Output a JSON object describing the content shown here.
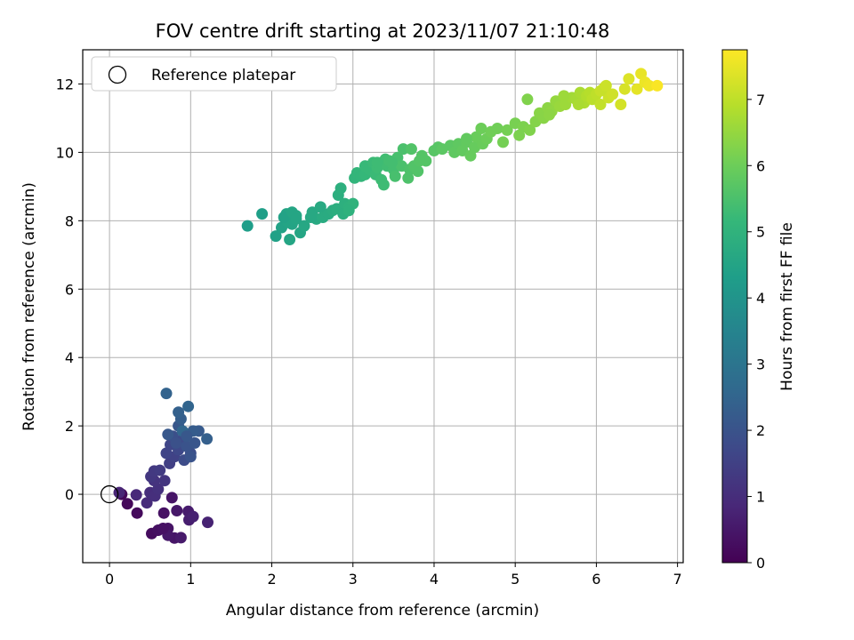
{
  "chart_data": {
    "type": "scatter",
    "title": "FOV centre drift starting at 2023/11/07 21:10:48",
    "xlabel": "Angular distance from reference (arcmin)",
    "ylabel": "Rotation from reference (arcmin)",
    "xlim": [
      -0.33,
      7.07
    ],
    "ylim": [
      -2.0,
      13.0
    ],
    "xticks": [
      0,
      1,
      2,
      3,
      4,
      5,
      6,
      7
    ],
    "yticks": [
      0,
      2,
      4,
      6,
      8,
      10,
      12
    ],
    "grid": true,
    "legend": {
      "position": "top-left",
      "entries": [
        "Reference platepar"
      ]
    },
    "reference_point": {
      "x": 0,
      "y": 0,
      "label": "Reference platepar"
    },
    "colorbar": {
      "label": "Hours from first FF file",
      "min": 0,
      "max": 7.75,
      "ticks": [
        0,
        1,
        2,
        3,
        4,
        5,
        6,
        7
      ],
      "colormap": "viridis"
    },
    "colormap_stops": [
      "#440154",
      "#482878",
      "#3e4989",
      "#31688e",
      "#26828e",
      "#1f9e89",
      "#35b779",
      "#6ece58",
      "#b5de2b",
      "#fde725"
    ],
    "series": [
      {
        "points": [
          [
            0.15,
            0.0,
            0.1
          ],
          [
            0.22,
            -0.28,
            0.15
          ],
          [
            0.34,
            -0.55,
            0.2
          ],
          [
            0.52,
            -1.15,
            0.25
          ],
          [
            0.6,
            -1.05,
            0.3
          ],
          [
            0.67,
            -0.55,
            0.35
          ],
          [
            0.72,
            -1.0,
            0.4
          ],
          [
            0.77,
            -0.1,
            0.42
          ],
          [
            0.8,
            -1.28,
            0.45
          ],
          [
            0.83,
            -0.48,
            0.5
          ],
          [
            0.88,
            -1.27,
            0.55
          ],
          [
            0.97,
            -0.5,
            0.6
          ],
          [
            0.98,
            -0.75,
            0.65
          ],
          [
            1.03,
            -0.65,
            0.7
          ],
          [
            1.21,
            -0.82,
            0.75
          ],
          [
            0.72,
            -1.2,
            0.5
          ],
          [
            0.66,
            -1.0,
            0.35
          ],
          [
            0.12,
            0.05,
            0.8
          ],
          [
            0.33,
            -0.02,
            0.9
          ],
          [
            0.46,
            -0.25,
            0.95
          ],
          [
            0.5,
            0.05,
            1.0
          ],
          [
            0.56,
            -0.05,
            1.05
          ],
          [
            0.6,
            0.15,
            1.1
          ],
          [
            0.55,
            0.4,
            1.15
          ],
          [
            0.68,
            0.4,
            1.2
          ],
          [
            0.51,
            0.52,
            1.25
          ],
          [
            0.55,
            0.68,
            1.3
          ],
          [
            0.62,
            0.7,
            1.35
          ],
          [
            0.74,
            0.9,
            1.45
          ],
          [
            0.8,
            1.1,
            1.55
          ],
          [
            0.7,
            1.2,
            1.6
          ],
          [
            0.75,
            1.45,
            1.65
          ],
          [
            0.85,
            1.3,
            1.7
          ],
          [
            0.9,
            1.6,
            1.75
          ],
          [
            0.92,
            1.0,
            1.8
          ],
          [
            1.0,
            1.2,
            1.85
          ],
          [
            0.78,
            1.7,
            1.9
          ],
          [
            0.82,
            1.5,
            1.95
          ],
          [
            0.95,
            1.4,
            2.0
          ],
          [
            1.05,
            1.5,
            2.05
          ],
          [
            0.85,
            2.0,
            2.1
          ],
          [
            0.72,
            1.75,
            2.15
          ],
          [
            1.1,
            1.85,
            2.2
          ],
          [
            1.03,
            1.85,
            2.25
          ],
          [
            0.88,
            2.2,
            2.3
          ],
          [
            1.2,
            1.62,
            2.35
          ],
          [
            0.85,
            2.4,
            2.4
          ],
          [
            0.7,
            2.95,
            2.45
          ],
          [
            0.97,
            2.57,
            2.5
          ],
          [
            0.9,
            1.85,
            2.55
          ],
          [
            1.0,
            1.1,
            2.0
          ],
          [
            0.95,
            1.7,
            2.1
          ]
        ]
      },
      {
        "points": [
          [
            1.7,
            7.85,
            4.3
          ],
          [
            1.88,
            8.2,
            4.35
          ],
          [
            2.05,
            7.55,
            4.4
          ],
          [
            2.12,
            7.8,
            4.45
          ],
          [
            2.18,
            8.2,
            4.5
          ],
          [
            2.22,
            7.45,
            4.55
          ],
          [
            2.25,
            7.9,
            4.5
          ],
          [
            2.3,
            8.15,
            4.6
          ],
          [
            2.35,
            7.65,
            4.55
          ],
          [
            2.4,
            7.85,
            4.6
          ],
          [
            2.2,
            7.95,
            4.5
          ],
          [
            2.15,
            8.1,
            4.45
          ],
          [
            2.25,
            8.25,
            4.55
          ],
          [
            2.5,
            8.25,
            4.65
          ],
          [
            2.55,
            8.05,
            4.7
          ],
          [
            2.6,
            8.4,
            4.7
          ],
          [
            2.63,
            8.1,
            4.75
          ],
          [
            2.7,
            8.2,
            4.75
          ],
          [
            2.75,
            8.3,
            4.8
          ],
          [
            2.8,
            8.35,
            4.85
          ],
          [
            2.82,
            8.75,
            4.85
          ],
          [
            2.85,
            8.95,
            4.9
          ],
          [
            2.88,
            8.2,
            4.85
          ],
          [
            2.9,
            8.5,
            4.9
          ],
          [
            2.95,
            8.4,
            4.95
          ],
          [
            3.0,
            8.5,
            5.0
          ],
          [
            3.02,
            9.25,
            5.05
          ],
          [
            3.05,
            9.4,
            5.1
          ],
          [
            3.1,
            9.3,
            5.1
          ],
          [
            3.15,
            9.35,
            5.15
          ],
          [
            3.15,
            9.6,
            5.2
          ],
          [
            3.2,
            9.5,
            5.2
          ],
          [
            3.25,
            9.7,
            5.25
          ],
          [
            3.28,
            9.35,
            5.25
          ],
          [
            3.3,
            9.55,
            5.3
          ],
          [
            3.35,
            9.2,
            5.3
          ],
          [
            3.38,
            9.05,
            5.3
          ],
          [
            3.4,
            9.8,
            5.35
          ],
          [
            3.42,
            9.6,
            5.35
          ],
          [
            3.45,
            9.75,
            5.4
          ],
          [
            3.5,
            9.5,
            5.4
          ],
          [
            3.52,
            9.3,
            5.45
          ],
          [
            3.55,
            9.85,
            5.45
          ],
          [
            3.6,
            9.6,
            5.5
          ],
          [
            3.62,
            10.1,
            5.5
          ],
          [
            3.68,
            9.25,
            5.55
          ],
          [
            3.7,
            9.5,
            5.55
          ],
          [
            3.72,
            10.1,
            5.6
          ],
          [
            3.75,
            9.6,
            5.6
          ],
          [
            3.8,
            9.45,
            5.6
          ],
          [
            3.85,
            9.9,
            5.65
          ],
          [
            3.9,
            9.75,
            5.65
          ],
          [
            4.0,
            10.05,
            5.7
          ],
          [
            4.05,
            10.15,
            5.7
          ],
          [
            4.1,
            10.1,
            5.75
          ],
          [
            4.2,
            10.2,
            5.75
          ],
          [
            4.25,
            10.0,
            5.8
          ],
          [
            4.3,
            10.25,
            5.8
          ],
          [
            4.35,
            10.05,
            5.85
          ],
          [
            4.4,
            10.3,
            5.85
          ],
          [
            4.45,
            9.9,
            5.9
          ],
          [
            4.5,
            10.15,
            5.9
          ],
          [
            4.52,
            10.45,
            5.95
          ],
          [
            4.58,
            10.7,
            6.0
          ],
          [
            4.6,
            10.25,
            5.95
          ],
          [
            4.65,
            10.4,
            6.0
          ],
          [
            4.7,
            10.6,
            6.05
          ],
          [
            4.78,
            10.7,
            6.05
          ],
          [
            4.85,
            10.3,
            6.1
          ],
          [
            4.9,
            10.65,
            6.1
          ],
          [
            5.0,
            10.85,
            6.15
          ],
          [
            5.05,
            10.5,
            6.2
          ],
          [
            5.1,
            10.75,
            6.2
          ],
          [
            5.15,
            11.55,
            6.25
          ],
          [
            5.18,
            10.65,
            6.25
          ],
          [
            5.25,
            10.9,
            6.3
          ],
          [
            5.3,
            11.15,
            6.35
          ],
          [
            5.35,
            11.0,
            6.35
          ],
          [
            5.4,
            11.3,
            6.4
          ],
          [
            5.45,
            11.2,
            6.45
          ],
          [
            5.5,
            11.5,
            6.5
          ],
          [
            5.55,
            11.35,
            6.55
          ],
          [
            5.62,
            11.4,
            6.6
          ],
          [
            5.7,
            11.6,
            6.65
          ],
          [
            5.75,
            11.55,
            6.7
          ],
          [
            5.8,
            11.75,
            6.75
          ],
          [
            5.85,
            11.45,
            6.8
          ],
          [
            5.88,
            11.65,
            6.85
          ],
          [
            5.92,
            11.75,
            6.9
          ],
          [
            5.95,
            11.55,
            6.95
          ],
          [
            6.0,
            11.7,
            7.0
          ],
          [
            6.05,
            11.4,
            7.05
          ],
          [
            6.1,
            11.9,
            7.1
          ],
          [
            6.15,
            11.6,
            7.15
          ],
          [
            6.2,
            11.7,
            7.2
          ],
          [
            6.3,
            11.4,
            7.25
          ],
          [
            6.35,
            11.85,
            7.3
          ],
          [
            6.4,
            12.15,
            7.35
          ],
          [
            6.5,
            11.85,
            7.45
          ],
          [
            6.55,
            12.3,
            7.5
          ],
          [
            6.6,
            12.05,
            7.55
          ],
          [
            6.65,
            11.95,
            7.6
          ],
          [
            6.75,
            11.95,
            7.7
          ],
          [
            5.6,
            11.65,
            6.6
          ],
          [
            5.78,
            11.4,
            6.75
          ],
          [
            6.05,
            11.8,
            7.1
          ],
          [
            6.12,
            11.95,
            7.15
          ],
          [
            5.42,
            11.1,
            6.4
          ],
          [
            3.48,
            9.7,
            5.4
          ],
          [
            3.3,
            9.7,
            5.3
          ],
          [
            2.95,
            8.3,
            4.95
          ],
          [
            2.48,
            8.1,
            4.65
          ],
          [
            2.3,
            8.05,
            4.55
          ],
          [
            3.82,
            9.75,
            5.65
          ],
          [
            4.4,
            10.4,
            5.85
          ]
        ]
      }
    ]
  }
}
